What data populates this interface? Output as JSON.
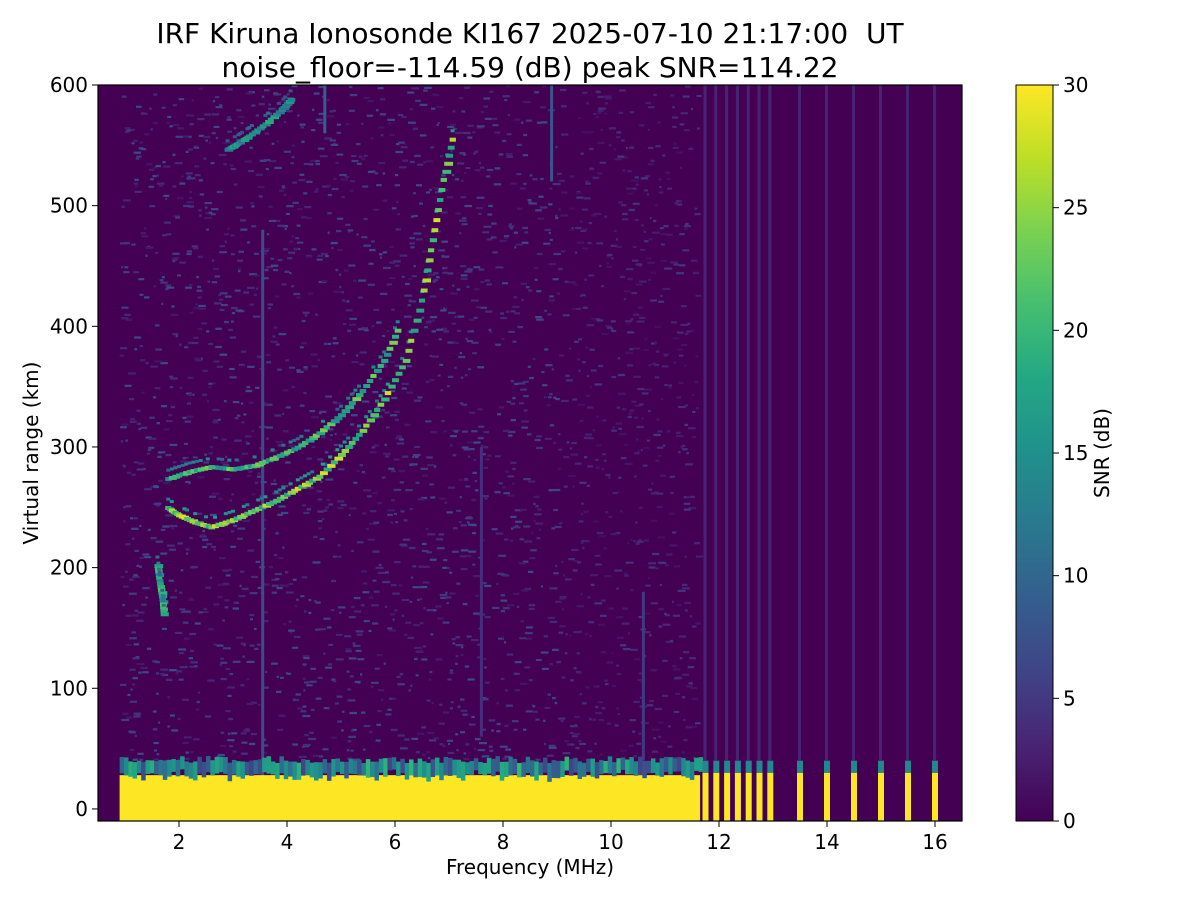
{
  "chart_data": {
    "type": "heatmap",
    "title": "IRF Kiruna Ionosonde KI167 2025-07-10 21:17:00  UT",
    "subtitle": "noise_floor=-114.59 (dB) peak SNR=114.22",
    "xlabel": "Frequency (MHz)",
    "ylabel": "Virtual range (km)",
    "xlim": [
      0.5,
      16.5
    ],
    "ylim": [
      -10,
      600
    ],
    "xticks": [
      2,
      4,
      6,
      8,
      10,
      12,
      14,
      16
    ],
    "yticks": [
      0,
      100,
      200,
      300,
      400,
      500,
      600
    ],
    "grid": false,
    "colormap": "viridis",
    "colorbar": {
      "label": "SNR (dB)",
      "range": [
        0,
        30
      ],
      "ticks": [
        0,
        5,
        10,
        15,
        20,
        25,
        30
      ]
    },
    "freq_range_mhz": [
      0.9,
      16.3
    ],
    "low_range_saturation_km": 28,
    "low_range_saturation_freq_end_mhz": 11.65,
    "discrete_channels_mhz": [
      11.75,
      11.95,
      12.15,
      12.35,
      12.55,
      12.75,
      12.95,
      13.5,
      14.0,
      14.5,
      15.0,
      15.5,
      16.0
    ],
    "echo_traces": [
      {
        "name": "",
        "points": [
          [
            1.8,
            248
          ],
          [
            2.0,
            242
          ],
          [
            2.3,
            236
          ],
          [
            2.6,
            232
          ],
          [
            3.0,
            238
          ],
          [
            3.4,
            246
          ],
          [
            3.8,
            254
          ],
          [
            4.2,
            264
          ],
          [
            4.6,
            274
          ],
          [
            5.0,
            292
          ],
          [
            5.4,
            312
          ],
          [
            5.8,
            338
          ],
          [
            6.2,
            370
          ],
          [
            6.5,
            420
          ],
          [
            6.7,
            470
          ],
          [
            6.9,
            520
          ],
          [
            7.1,
            560
          ]
        ],
        "snr_db": 26
      },
      {
        "name": "",
        "points": [
          [
            1.8,
            272
          ],
          [
            2.2,
            278
          ],
          [
            2.6,
            282
          ],
          [
            3.0,
            280
          ],
          [
            3.4,
            283
          ],
          [
            3.8,
            290
          ],
          [
            4.2,
            298
          ],
          [
            4.6,
            310
          ],
          [
            5.0,
            325
          ],
          [
            5.4,
            345
          ],
          [
            5.8,
            370
          ],
          [
            6.1,
            400
          ]
        ],
        "snr_db": 22
      },
      {
        "name": "",
        "points": [
          [
            1.6,
            200
          ],
          [
            1.65,
            185
          ],
          [
            1.7,
            170
          ],
          [
            1.72,
            158
          ]
        ],
        "snr_db": 20
      },
      {
        "name": "",
        "points": [
          [
            2.9,
            545
          ],
          [
            3.1,
            550
          ],
          [
            3.3,
            556
          ],
          [
            3.6,
            566
          ],
          [
            3.9,
            578
          ],
          [
            4.1,
            588
          ]
        ],
        "snr_db": 17
      }
    ]
  }
}
